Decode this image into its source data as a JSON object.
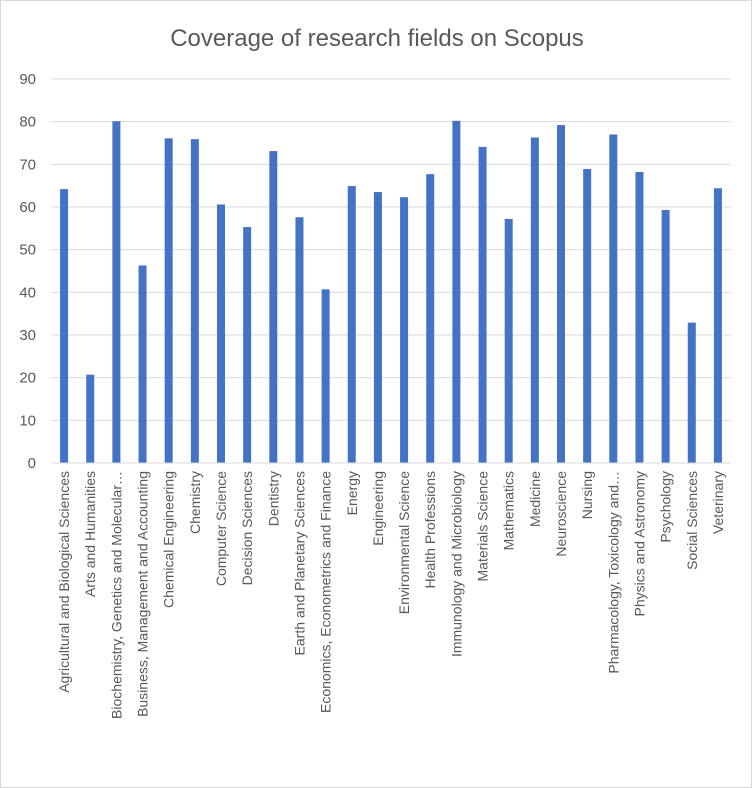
{
  "chart_data": {
    "type": "bar",
    "title": "Coverage of research fields on Scopus",
    "xlabel": "",
    "ylabel": "",
    "ylim": [
      0,
      90
    ],
    "yticks": [
      0,
      10,
      20,
      30,
      40,
      50,
      60,
      70,
      80,
      90
    ],
    "grid": true,
    "legend": "none",
    "bar_color": "#4472c4",
    "categories": [
      "Agricultural and Biological Sciences",
      "Arts and Humanities",
      "Biochemistry, Genetics and Molecular…",
      "Business, Management and Accounting",
      "Chemical Engineering",
      "Chemistry",
      "Computer Science",
      "Decision Sciences",
      "Dentistry",
      "Earth and Planetary Sciences",
      "Economics, Econometrics and Finance",
      "Energy",
      "Engineering",
      "Environmental Science",
      "Health Professions",
      "Immunology and Microbiology",
      "Materials Science",
      "Mathematics",
      "Medicine",
      "Neuroscience",
      "Nursing",
      "Pharmacology, Toxicology and…",
      "Physics and Astronomy",
      "Psychology",
      "Social Sciences",
      "Veterinary"
    ],
    "values": [
      64.2,
      20.7,
      80.1,
      46.3,
      76.1,
      75.9,
      60.6,
      55.3,
      73.1,
      57.6,
      40.7,
      64.9,
      63.5,
      62.3,
      67.7,
      80.2,
      74.1,
      57.2,
      76.3,
      79.2,
      68.9,
      77.0,
      68.2,
      59.3,
      32.9,
      64.4
    ]
  }
}
